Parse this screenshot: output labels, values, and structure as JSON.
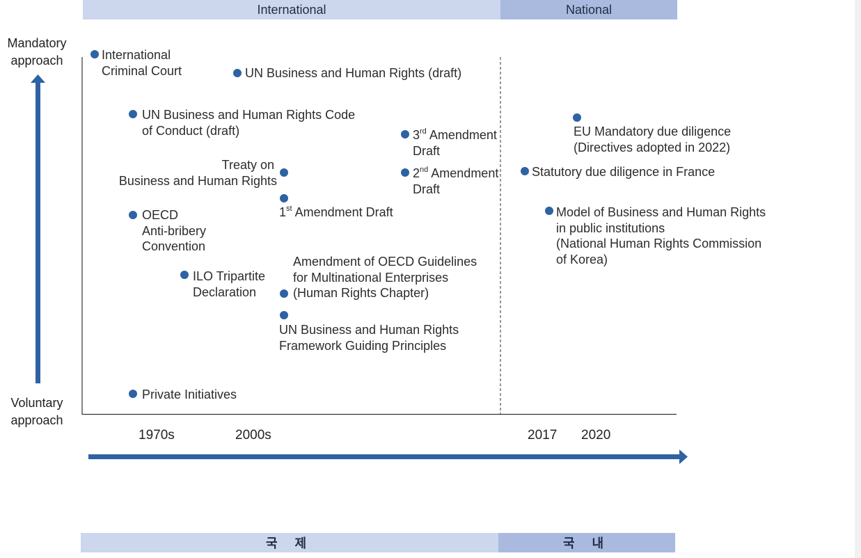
{
  "colors": {
    "accent": "#2e62a3",
    "band_international": "#ccd6ec",
    "band_national": "#a9bade"
  },
  "bands_top": {
    "international": "International",
    "national": "National"
  },
  "bands_bottom": {
    "international": "국 제",
    "national": "국 내"
  },
  "y_axis": {
    "top_line1": "Mandatory",
    "top_line2": "approach",
    "bottom_line1": "Voluntary",
    "bottom_line2": "approach"
  },
  "x_ticks": [
    "1970s",
    "2000s",
    "2017",
    "2020"
  ],
  "events": {
    "icc_line1": "International",
    "icc_line2": "Criminal Court",
    "un_bhr_draft": "UN Business and Human Rights (draft)",
    "un_code_line1": "UN Business and Human Rights Code",
    "un_code_line2": "of Conduct (draft)",
    "third_amend_num": "3",
    "third_amend_sup": "rd",
    "third_amend_line1": "Amendment",
    "third_amend_line2": "Draft",
    "second_amend_num": "2",
    "second_amend_sup": "nd",
    "second_amend_line1": "Amendment",
    "second_amend_line2": "Draft",
    "treaty_line1": "Treaty on",
    "treaty_line2": "Business and Human Rights",
    "first_amend_num": "1",
    "first_amend_sup": "st",
    "first_amend_text": "Amendment Draft",
    "oecd_ab_line1": "OECD",
    "oecd_ab_line2": "Anti-bribery",
    "oecd_ab_line3": "Convention",
    "ilo_line1": "ILO Tripartite",
    "ilo_line2": "Declaration",
    "oecd_guide_line1": "Amendment of OECD Guidelines",
    "oecd_guide_line2": "for Multinational Enterprises",
    "oecd_guide_line3": "(Human Rights Chapter)",
    "ungp_line1": "UN Business and Human Rights",
    "ungp_line2": "Framework Guiding Principles",
    "private": "Private Initiatives",
    "eu_line1": "EU Mandatory due diligence",
    "eu_line2": "(Directives adopted in 2022)",
    "france": "Statutory due diligence in France",
    "nhrck_line1": "Model of Business and Human Rights",
    "nhrck_line2": "in public institutions",
    "nhrck_line3": "(National Human Rights Commission",
    "nhrck_line4": "of Korea)"
  }
}
